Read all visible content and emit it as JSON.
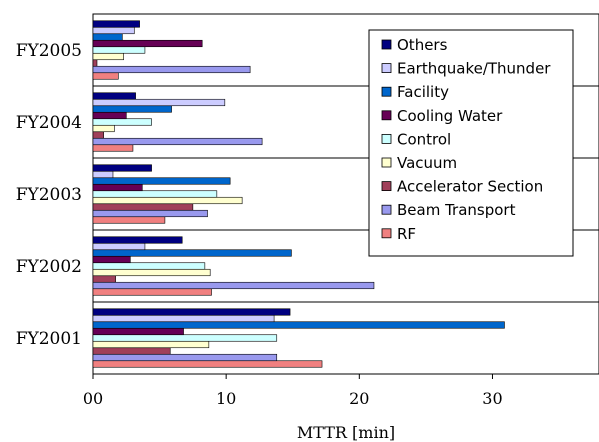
{
  "chart_data": {
    "type": "bar",
    "orientation": "horizontal",
    "categories": [
      "FY2001",
      "FY2002",
      "FY2003",
      "FY2004",
      "FY2005"
    ],
    "xlabel": "MTTR [min]",
    "ylabel": "",
    "xlim": [
      0,
      38
    ],
    "xticks": [
      0,
      10,
      20,
      30
    ],
    "xtick_labels": [
      "00",
      "10",
      "20",
      "30"
    ],
    "grid": "horizontal separators between categories",
    "legend_position": "top-right",
    "series": [
      {
        "name": "RF",
        "color": "#f08080",
        "values": [
          17.2,
          8.9,
          5.4,
          3.0,
          1.9
        ]
      },
      {
        "name": "Beam Transport",
        "color": "#9999ee",
        "values": [
          13.8,
          21.1,
          8.6,
          12.7,
          11.8
        ]
      },
      {
        "name": "Accelerator Section",
        "color": "#a0405a",
        "values": [
          5.8,
          1.7,
          7.5,
          0.8,
          0.3
        ]
      },
      {
        "name": "Vacuum",
        "color": "#ffffd0",
        "values": [
          8.7,
          8.8,
          11.2,
          1.6,
          2.3
        ]
      },
      {
        "name": "Control",
        "color": "#ccffff",
        "values": [
          13.8,
          8.4,
          9.3,
          4.4,
          3.9
        ]
      },
      {
        "name": "Cooling Water",
        "color": "#660055",
        "values": [
          6.8,
          2.8,
          3.7,
          2.5,
          8.2
        ]
      },
      {
        "name": "Facility",
        "color": "#0066cc",
        "values": [
          30.9,
          14.9,
          10.3,
          5.9,
          2.2
        ]
      },
      {
        "name": "Earthquake/Thunder",
        "color": "#ccccff",
        "values": [
          13.6,
          3.9,
          1.5,
          9.9,
          3.1
        ]
      },
      {
        "name": "Others",
        "color": "#000080",
        "values": [
          14.8,
          6.7,
          4.4,
          3.2,
          3.5
        ]
      }
    ]
  }
}
